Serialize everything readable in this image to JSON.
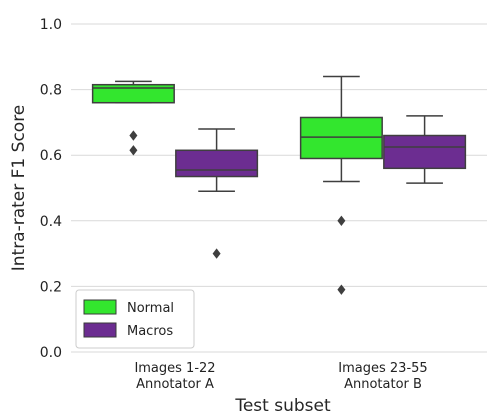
{
  "chart_data": {
    "type": "box",
    "title": "",
    "xlabel": "Test subset",
    "ylabel": "Intra-rater F1 Score",
    "ylim": [
      0,
      1.0
    ],
    "yticks": [
      0.0,
      0.2,
      0.4,
      0.6,
      0.8,
      1.0
    ],
    "ytick_labels": [
      "0.0",
      "0.2",
      "0.4",
      "0.6",
      "0.8",
      "1.0"
    ],
    "grid": "horizontal",
    "legend_position": "bottom-left",
    "categories": [
      {
        "line1": "Images 1-22",
        "line2": "Annotator A"
      },
      {
        "line1": "Images 23-55",
        "line2": "Annotator B"
      }
    ],
    "series": [
      {
        "name": "Normal",
        "color": "#33e62e",
        "boxes": [
          {
            "whisker_low": 0.76,
            "q1": 0.76,
            "median": 0.805,
            "q3": 0.815,
            "whisker_high": 0.825,
            "outliers": [
              0.66,
              0.615
            ]
          },
          {
            "whisker_low": 0.52,
            "q1": 0.59,
            "median": 0.655,
            "q3": 0.715,
            "whisker_high": 0.84,
            "outliers": [
              0.4,
              0.19
            ]
          }
        ]
      },
      {
        "name": "Macros",
        "color": "#6c2d91",
        "boxes": [
          {
            "whisker_low": 0.49,
            "q1": 0.535,
            "median": 0.555,
            "q3": 0.615,
            "whisker_high": 0.68,
            "outliers": [
              0.3
            ]
          },
          {
            "whisker_low": 0.515,
            "q1": 0.56,
            "median": 0.625,
            "q3": 0.66,
            "whisker_high": 0.72,
            "outliers": []
          }
        ]
      }
    ]
  }
}
